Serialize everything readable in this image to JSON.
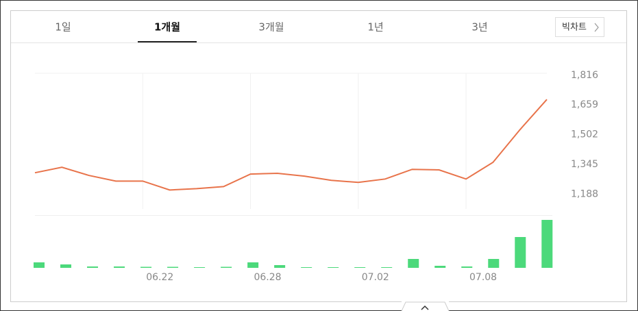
{
  "tabs": [
    "1일",
    "1개월",
    "3개월",
    "1년",
    "3년"
  ],
  "selected_tab": 1,
  "button": "빅차트",
  "chart_data": [
    {
      "type": "line",
      "color": "#e8734a",
      "values": [
        1301,
        1330,
        1287,
        1257,
        1257,
        1210,
        1217,
        1228,
        1294,
        1298,
        1283,
        1261,
        1250,
        1268,
        1319,
        1316,
        1268,
        1356,
        1528,
        1688
      ],
      "ylim": [
        1110,
        1826
      ],
      "yticks": [
        {
          "value": 1188,
          "label": "1,188"
        },
        {
          "value": 1345,
          "label": "1,345"
        },
        {
          "value": 1502,
          "label": "1,502"
        },
        {
          "value": 1659,
          "label": "1,659"
        },
        {
          "value": 1816,
          "label": "1,816"
        }
      ],
      "grid": true
    },
    {
      "type": "bar",
      "color": "#4cd97b",
      "categories": [
        null,
        null,
        null,
        null,
        "06.22",
        null,
        null,
        null,
        "06.28",
        null,
        null,
        null,
        "07.02",
        null,
        null,
        null,
        "07.08",
        null,
        null,
        null
      ],
      "values": [
        8,
        5,
        2,
        2,
        1.5,
        1.5,
        1,
        1.5,
        8,
        4,
        1,
        1,
        1,
        1,
        13,
        3,
        2,
        13,
        45,
        70
      ],
      "ylim": [
        0,
        75
      ]
    }
  ]
}
